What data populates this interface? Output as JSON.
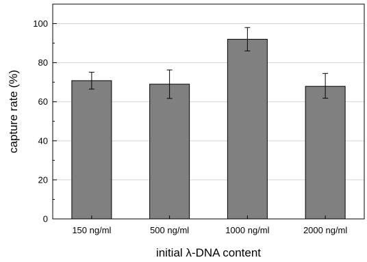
{
  "chart_data": {
    "type": "bar",
    "title": "",
    "xlabel": "initial λ-DNA content",
    "ylabel": "capture rate (%)",
    "categories": [
      "150 ng/ml",
      "500 ng/ml",
      "1000 ng/ml",
      "2000 ng/ml"
    ],
    "series": [
      {
        "values": [
          70.8,
          69.0,
          92.0,
          67.9
        ],
        "error_low": [
          4.3,
          7.3,
          6.0,
          6.1
        ],
        "error_high": [
          4.3,
          7.3,
          6.0,
          6.6
        ]
      }
    ],
    "ylim": [
      0,
      110
    ],
    "yticks": [
      0,
      20,
      40,
      60,
      80,
      100
    ],
    "y_minor_step": 10,
    "grid": true,
    "legend": "none",
    "bar_color": "#808080",
    "grid_color": "#d3d3d3"
  }
}
